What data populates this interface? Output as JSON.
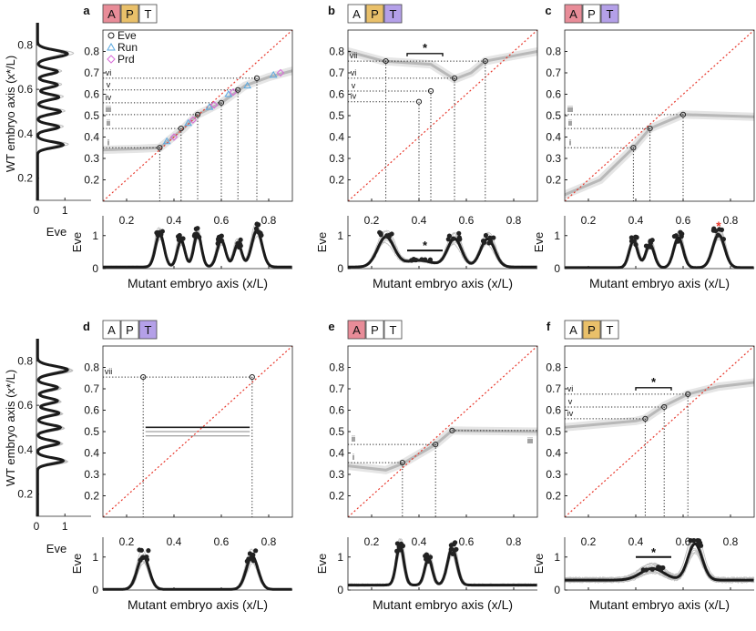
{
  "colors": {
    "gene_A": "#e88c98",
    "gene_P": "#e9c06a",
    "gene_T": "#b4a0e8",
    "gene_off": "#ffffff",
    "diagonal": "#e8382c",
    "eve_marker": "#222222",
    "run_marker": "#5aa8e0",
    "prd_marker": "#d86ad8",
    "profile_mean": "#1a1a1a",
    "profile_traces": "#bdbdbd",
    "star_red": "#e8382c"
  },
  "labels": {
    "wt_axis": "WT embryo axis (x*/L)",
    "mutant_axis": "Mutant embryo axis (x/L)",
    "eve": "Eve",
    "star": "*"
  },
  "legend": [
    {
      "label": "Eve",
      "marker": "circle",
      "color_key": "eve_marker"
    },
    {
      "label": "Run",
      "marker": "triangle",
      "color_key": "run_marker"
    },
    {
      "label": "Prd",
      "marker": "diamond",
      "color_key": "prd_marker"
    }
  ],
  "side_profiles": [
    {
      "xlabel": "Eve",
      "xticks": [
        "0",
        "1"
      ],
      "yticks": [
        "0.2",
        "0.4",
        "0.6",
        "0.8"
      ]
    },
    {
      "xlabel": "Eve",
      "xticks": [
        "0",
        "1"
      ],
      "yticks": [
        "0.2",
        "0.4",
        "0.6",
        "0.8"
      ]
    }
  ],
  "chart_data": [
    {
      "panel": "a",
      "type": "heatmap",
      "genes": [
        {
          "letter": "A",
          "on": true,
          "color_key": "gene_A"
        },
        {
          "letter": "P",
          "on": true,
          "color_key": "gene_P"
        },
        {
          "letter": "T",
          "on": false
        }
      ],
      "title": "",
      "xlabel": "Mutant embryo axis (x/L)",
      "ylabel": "WT embryo axis (x*/L)",
      "xlim": [
        0.1,
        0.9
      ],
      "ylim": [
        0.1,
        0.9
      ],
      "xticks": [
        "0.2",
        "0.4",
        "0.6",
        "0.8"
      ],
      "yticks": [
        "0.2",
        "0.3",
        "0.4",
        "0.5",
        "0.6",
        "0.7",
        "0.8"
      ],
      "map_band": [
        [
          0.1,
          0.34
        ],
        [
          0.25,
          0.345
        ],
        [
          0.34,
          0.35
        ],
        [
          0.44,
          0.44
        ],
        [
          0.5,
          0.505
        ],
        [
          0.6,
          0.56
        ],
        [
          0.7,
          0.64
        ],
        [
          0.8,
          0.68
        ],
        [
          0.9,
          0.71
        ]
      ],
      "eve_points": [
        [
          0.34,
          0.35
        ],
        [
          0.43,
          0.44
        ],
        [
          0.5,
          0.505
        ],
        [
          0.6,
          0.56
        ],
        [
          0.67,
          0.62
        ],
        [
          0.75,
          0.675
        ]
      ],
      "run_points": [
        [
          0.37,
          0.38
        ],
        [
          0.46,
          0.465
        ],
        [
          0.55,
          0.54
        ],
        [
          0.63,
          0.6
        ],
        [
          0.71,
          0.64
        ],
        [
          0.82,
          0.69
        ]
      ],
      "prd_points": [
        [
          0.4,
          0.4
        ],
        [
          0.48,
          0.48
        ],
        [
          0.57,
          0.55
        ],
        [
          0.65,
          0.61
        ],
        [
          0.85,
          0.7
        ]
      ],
      "stripes": [
        {
          "label": "i",
          "y": 0.35,
          "x": 0.34
        },
        {
          "label": "ii",
          "y": 0.44,
          "x": 0.43
        },
        {
          "label": "iii",
          "y": 0.505,
          "x": 0.5
        },
        {
          "label": "iv",
          "y": 0.56,
          "x": 0.6
        },
        {
          "label": "v",
          "y": 0.62,
          "x": 0.67
        },
        {
          "label": "vi",
          "y": 0.675,
          "x": 0.75
        }
      ],
      "profile": {
        "ylabel": "Eve",
        "yticks": [
          "0",
          "1"
        ],
        "xlim": [
          0.1,
          0.9
        ],
        "xticks": [
          "0.2",
          "0.4",
          "0.6",
          "0.8"
        ],
        "peaks": [
          {
            "x": 0.34,
            "h": 1.0,
            "w": 0.018
          },
          {
            "x": 0.43,
            "h": 0.8,
            "w": 0.016
          },
          {
            "x": 0.5,
            "h": 1.0,
            "w": 0.016
          },
          {
            "x": 0.6,
            "h": 0.8,
            "w": 0.018
          },
          {
            "x": 0.67,
            "h": 0.7,
            "w": 0.016
          },
          {
            "x": 0.75,
            "h": 1.1,
            "w": 0.022
          }
        ],
        "base": 0.05,
        "bar": null
      },
      "red_star": null
    },
    {
      "panel": "b",
      "type": "heatmap",
      "genes": [
        {
          "letter": "A",
          "on": false
        },
        {
          "letter": "P",
          "on": true,
          "color_key": "gene_P"
        },
        {
          "letter": "T",
          "on": true,
          "color_key": "gene_T"
        }
      ],
      "title": "",
      "xlabel": "Mutant embryo axis (x/L)",
      "ylabel": "",
      "xlim": [
        0.1,
        0.9
      ],
      "ylim": [
        0.1,
        0.9
      ],
      "xticks": [
        "0.2",
        "0.4",
        "0.6",
        "0.8"
      ],
      "yticks": [
        "0.2",
        "0.3",
        "0.4",
        "0.5",
        "0.6",
        "0.7",
        "0.8"
      ],
      "map_band": [
        [
          0.1,
          0.8
        ],
        [
          0.25,
          0.755
        ],
        [
          0.45,
          0.74
        ],
        [
          0.55,
          0.67
        ],
        [
          0.62,
          0.7
        ],
        [
          0.68,
          0.755
        ],
        [
          0.9,
          0.8
        ]
      ],
      "eve_points": [
        [
          0.26,
          0.755
        ],
        [
          0.4,
          0.565
        ],
        [
          0.45,
          0.615
        ],
        [
          0.55,
          0.675
        ],
        [
          0.68,
          0.755
        ]
      ],
      "run_points": [],
      "prd_points": [],
      "stripes": [
        {
          "label": "iv",
          "y": 0.565,
          "x": 0.4
        },
        {
          "label": "v",
          "y": 0.615,
          "x": 0.45
        },
        {
          "label": "vi",
          "y": 0.675,
          "x": 0.55
        },
        {
          "label": "vii",
          "y": 0.755,
          "x": 0.68
        }
      ],
      "vline_x": [
        0.26
      ],
      "bracket": {
        "x1": 0.35,
        "x2": 0.5,
        "y": 0.79,
        "label": "*"
      },
      "profile": {
        "ylabel": "Eve",
        "yticks": [
          "0",
          "1"
        ],
        "xlim": [
          0.1,
          0.9
        ],
        "xticks": [
          "0.2",
          "0.4",
          "0.6",
          "0.8"
        ],
        "peaks": [
          {
            "x": 0.26,
            "h": 0.9,
            "w": 0.035
          },
          {
            "x": 0.55,
            "h": 0.85,
            "w": 0.03
          },
          {
            "x": 0.69,
            "h": 0.85,
            "w": 0.03
          },
          {
            "x": 0.4,
            "h": 0.2,
            "w": 0.06
          }
        ],
        "base": 0.05,
        "bar": {
          "x1": 0.35,
          "x2": 0.5,
          "y": 0.55,
          "label": "*"
        }
      },
      "red_star": null
    },
    {
      "panel": "c",
      "type": "heatmap",
      "genes": [
        {
          "letter": "A",
          "on": true,
          "color_key": "gene_A"
        },
        {
          "letter": "P",
          "on": false
        },
        {
          "letter": "T",
          "on": true,
          "color_key": "gene_T"
        }
      ],
      "title": "",
      "xlabel": "Mutant embryo axis (x/L)",
      "ylabel": "",
      "xlim": [
        0.1,
        0.9
      ],
      "ylim": [
        0.1,
        0.9
      ],
      "xticks": [
        "0.2",
        "0.4",
        "0.6",
        "0.8"
      ],
      "yticks": [
        "0.2",
        "0.3",
        "0.4",
        "0.5",
        "0.6",
        "0.7",
        "0.8"
      ],
      "map_band": [
        [
          0.1,
          0.13
        ],
        [
          0.25,
          0.2
        ],
        [
          0.39,
          0.35
        ],
        [
          0.46,
          0.44
        ],
        [
          0.6,
          0.505
        ],
        [
          0.75,
          0.5
        ],
        [
          0.9,
          0.495
        ]
      ],
      "eve_points": [
        [
          0.39,
          0.35
        ],
        [
          0.46,
          0.44
        ],
        [
          0.6,
          0.505
        ]
      ],
      "run_points": [],
      "prd_points": [],
      "stripes": [
        {
          "label": "i",
          "y": 0.35,
          "x": 0.39
        },
        {
          "label": "ii",
          "y": 0.44,
          "x": 0.46
        },
        {
          "label": "iii",
          "y": 0.505,
          "x": 0.6
        }
      ],
      "profile": {
        "ylabel": "Eve",
        "yticks": [
          "0",
          "1"
        ],
        "xlim": [
          0.1,
          0.9
        ],
        "xticks": [
          "0.2",
          "0.4",
          "0.6",
          "0.8"
        ],
        "peaks": [
          {
            "x": 0.39,
            "h": 0.8,
            "w": 0.018
          },
          {
            "x": 0.46,
            "h": 0.7,
            "w": 0.018
          },
          {
            "x": 0.58,
            "h": 0.9,
            "w": 0.02
          },
          {
            "x": 0.75,
            "h": 1.0,
            "w": 0.025
          }
        ],
        "base": 0.03,
        "bar": null
      },
      "red_star": {
        "x": 0.75,
        "label": "*"
      }
    },
    {
      "panel": "d",
      "type": "heatmap",
      "genes": [
        {
          "letter": "A",
          "on": false
        },
        {
          "letter": "P",
          "on": false
        },
        {
          "letter": "T",
          "on": true,
          "color_key": "gene_T"
        }
      ],
      "title": "",
      "xlabel": "Mutant embryo axis (x/L)",
      "ylabel": "WT embryo axis (x*/L)",
      "xlim": [
        0.1,
        0.9
      ],
      "ylim": [
        0.1,
        0.9
      ],
      "xticks": [
        "0.2",
        "0.4",
        "0.6",
        "0.8"
      ],
      "yticks": [
        "0.2",
        "0.3",
        "0.4",
        "0.5",
        "0.6",
        "0.7",
        "0.8"
      ],
      "map_band": [],
      "hlines": [
        0.52,
        0.5,
        0.48
      ],
      "eve_points": [
        [
          0.27,
          0.755
        ],
        [
          0.73,
          0.755
        ]
      ],
      "run_points": [],
      "prd_points": [],
      "stripes": [
        {
          "label": "vii",
          "y": 0.755,
          "x": 0.73
        }
      ],
      "vline_x": [
        0.27
      ],
      "profile": {
        "ylabel": "Eve",
        "yticks": [
          "0",
          "1"
        ],
        "xlim": [
          0.1,
          0.9
        ],
        "xticks": [
          "0.2",
          "0.4",
          "0.6",
          "0.8"
        ],
        "peaks": [
          {
            "x": 0.27,
            "h": 1.0,
            "w": 0.025
          },
          {
            "x": 0.73,
            "h": 1.0,
            "w": 0.025
          }
        ],
        "base": 0.02,
        "bar": null
      },
      "red_star": null
    },
    {
      "panel": "e",
      "type": "heatmap",
      "genes": [
        {
          "letter": "A",
          "on": true,
          "color_key": "gene_A"
        },
        {
          "letter": "P",
          "on": false
        },
        {
          "letter": "T",
          "on": false
        }
      ],
      "title": "",
      "xlabel": "Mutant embryo axis (x/L)",
      "ylabel": "",
      "xlim": [
        0.1,
        0.9
      ],
      "ylim": [
        0.1,
        0.9
      ],
      "xticks": [
        "0.2",
        "0.4",
        "0.6",
        "0.8"
      ],
      "yticks": [
        "0.2",
        "0.3",
        "0.4",
        "0.5",
        "0.6",
        "0.7",
        "0.8"
      ],
      "map_band": [
        [
          0.1,
          0.34
        ],
        [
          0.26,
          0.32
        ],
        [
          0.33,
          0.35
        ],
        [
          0.47,
          0.44
        ],
        [
          0.54,
          0.505
        ],
        [
          0.9,
          0.5
        ]
      ],
      "eve_points": [
        [
          0.33,
          0.355
        ],
        [
          0.47,
          0.44
        ],
        [
          0.54,
          0.505
        ]
      ],
      "run_points": [],
      "prd_points": [],
      "stripes": [
        {
          "label": "i",
          "y": 0.355,
          "x": 0.33
        },
        {
          "label": "ii",
          "y": 0.44,
          "x": 0.47
        }
      ],
      "right_label": {
        "label": "iii",
        "y": 0.505
      },
      "profile": {
        "ylabel": "Eve",
        "yticks": [
          "0",
          "1"
        ],
        "xlim": [
          0.1,
          0.9
        ],
        "xticks": [
          "0.2",
          "0.4",
          "0.6",
          "0.8"
        ],
        "peaks": [
          {
            "x": 0.32,
            "h": 1.2,
            "w": 0.016
          },
          {
            "x": 0.44,
            "h": 0.8,
            "w": 0.016
          },
          {
            "x": 0.54,
            "h": 1.1,
            "w": 0.02
          }
        ],
        "base": 0.15,
        "bar": null
      },
      "red_star": null
    },
    {
      "panel": "f",
      "type": "heatmap",
      "genes": [
        {
          "letter": "A",
          "on": false
        },
        {
          "letter": "P",
          "on": true,
          "color_key": "gene_P"
        },
        {
          "letter": "T",
          "on": false
        }
      ],
      "title": "",
      "xlabel": "Mutant embryo axis (x/L)",
      "ylabel": "",
      "xlim": [
        0.1,
        0.9
      ],
      "ylim": [
        0.1,
        0.9
      ],
      "xticks": [
        "0.2",
        "0.4",
        "0.6",
        "0.8"
      ],
      "yticks": [
        "0.2",
        "0.3",
        "0.4",
        "0.5",
        "0.6",
        "0.7",
        "0.8"
      ],
      "map_band": [
        [
          0.1,
          0.52
        ],
        [
          0.4,
          0.55
        ],
        [
          0.44,
          0.56
        ],
        [
          0.52,
          0.62
        ],
        [
          0.62,
          0.675
        ],
        [
          0.75,
          0.71
        ],
        [
          0.9,
          0.73
        ]
      ],
      "eve_points": [
        [
          0.44,
          0.56
        ],
        [
          0.52,
          0.615
        ],
        [
          0.62,
          0.675
        ]
      ],
      "run_points": [],
      "prd_points": [],
      "stripes": [
        {
          "label": "iv",
          "y": 0.56,
          "x": 0.44
        },
        {
          "label": "v",
          "y": 0.615,
          "x": 0.52
        },
        {
          "label": "vi",
          "y": 0.675,
          "x": 0.62
        }
      ],
      "bracket": {
        "x1": 0.4,
        "x2": 0.55,
        "y": 0.705,
        "label": "*"
      },
      "profile": {
        "ylabel": "Eve",
        "yticks": [
          "0",
          "1"
        ],
        "xlim": [
          0.1,
          0.9
        ],
        "xticks": [
          "0.2",
          "0.4",
          "0.6",
          "0.8"
        ],
        "peaks": [
          {
            "x": 0.47,
            "h": 0.35,
            "w": 0.05
          },
          {
            "x": 0.65,
            "h": 1.1,
            "w": 0.03
          }
        ],
        "base": 0.3,
        "bar": {
          "x1": 0.4,
          "x2": 0.55,
          "y": 1.0,
          "label": "*"
        }
      },
      "red_star": null
    }
  ]
}
